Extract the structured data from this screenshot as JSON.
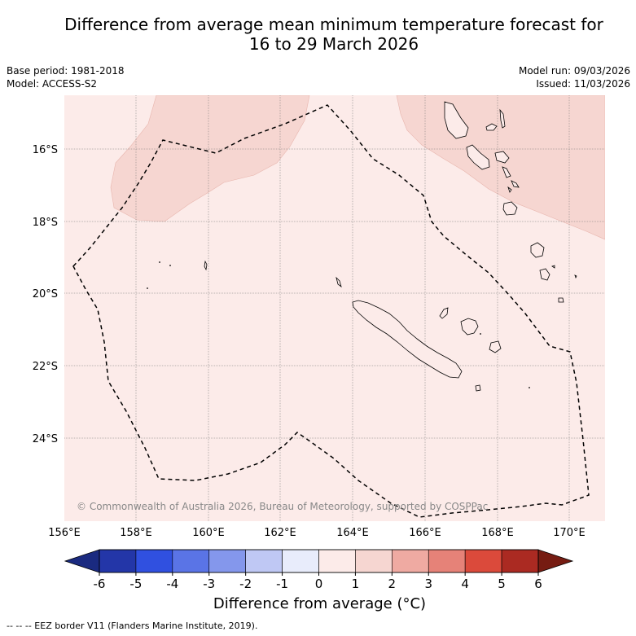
{
  "title": {
    "line1": "Difference from average mean minimum temperature forecast for",
    "line2": "16 to 29 March 2026"
  },
  "meta": {
    "base_period": "Base period: 1981-2018",
    "model": "Model: ACCESS-S2",
    "model_run": "Model run: 09/03/2026",
    "issued": "Issued: 11/03/2026"
  },
  "map": {
    "lon_ticks": [
      "156°E",
      "158°E",
      "160°E",
      "162°E",
      "164°E",
      "166°E",
      "168°E",
      "170°E"
    ],
    "lat_ticks": [
      "16°S",
      "18°S",
      "20°S",
      "22°S",
      "24°S"
    ],
    "copyright": "© Commonwealth of Australia 2026, Bureau of Meteorology, supported by COSPPac",
    "background_anomaly_class": "0 to 1",
    "warm_regions_class": "1 to 2"
  },
  "colorbar": {
    "label": "Difference from average (°C)",
    "ticks": [
      "-6",
      "-5",
      "-4",
      "-3",
      "-2",
      "-1",
      "0",
      "1",
      "2",
      "3",
      "4",
      "5",
      "6"
    ],
    "colors": {
      "below_min": "#1a2a80",
      "bins": [
        "#2336a8",
        "#3050e0",
        "#5a74e6",
        "#8497ec",
        "#bfc8f4",
        "#e8ecfb",
        "#fcebe9",
        "#f6d6d1",
        "#efaaa2",
        "#e68278",
        "#db4a3b",
        "#ab2a22"
      ],
      "above_max": "#761c12"
    }
  },
  "footer": {
    "legend": "--  --  -- EEZ border V11 (Flanders Marine Institute, 2019)."
  }
}
